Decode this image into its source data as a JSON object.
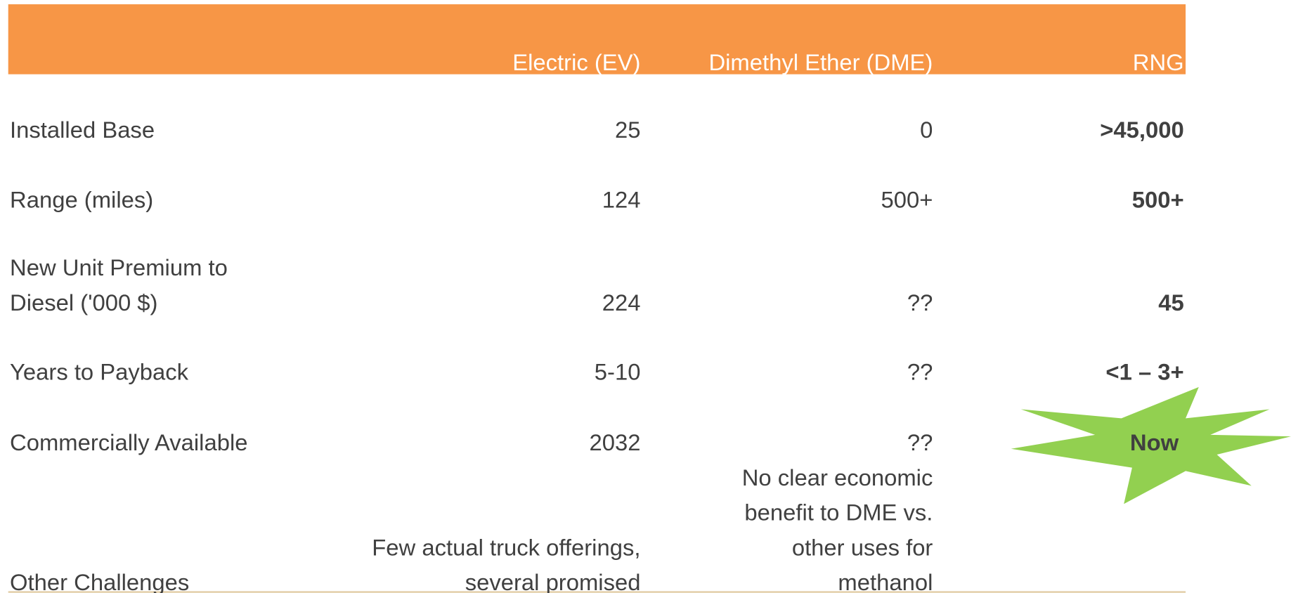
{
  "table": {
    "header": [
      "Electric (EV)",
      "Dimethyl Ether (DME)",
      "RNG"
    ],
    "rows": [
      {
        "label": [
          "Installed Base"
        ],
        "cells": [
          [
            "25"
          ],
          [
            "0"
          ],
          [
            ">45,000"
          ]
        ]
      },
      {
        "label": [
          "Range (miles)"
        ],
        "cells": [
          [
            "124"
          ],
          [
            "500+"
          ],
          [
            "500+"
          ]
        ]
      },
      {
        "label": [
          "New Unit Premium to",
          "Diesel ('000 $)"
        ],
        "cells": [
          [
            "224"
          ],
          [
            "??"
          ],
          [
            "45"
          ]
        ]
      },
      {
        "label": [
          "Years to Payback"
        ],
        "cells": [
          [
            "5-10"
          ],
          [
            "??"
          ],
          [
            "<1 – 3+"
          ]
        ]
      },
      {
        "label": [
          "Commercially Available"
        ],
        "cells": [
          [
            "2032"
          ],
          [
            "??"
          ],
          [
            "Now"
          ]
        ]
      },
      {
        "label": [
          "Other Challenges"
        ],
        "cells": [
          [
            "Few actual truck offerings,",
            "several promised"
          ],
          [
            "No clear economic",
            "benefit to DME vs.",
            "other uses for",
            "methanol"
          ],
          []
        ]
      }
    ]
  }
}
